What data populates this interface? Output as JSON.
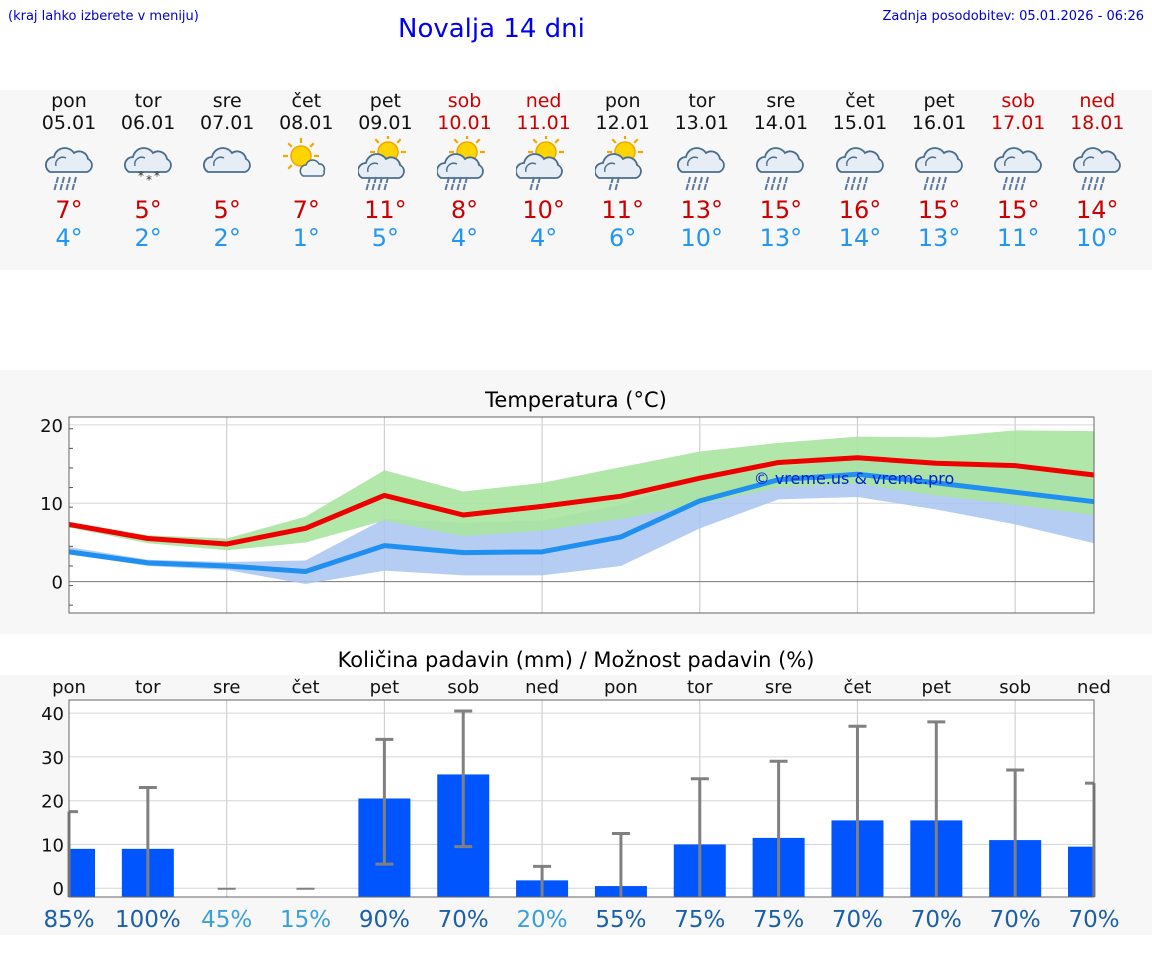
{
  "header": {
    "hint": "(kraj lahko izberete v meniju)",
    "title": "Novalja 14 dni",
    "updated": "Zadnja posodobitev: 05.01.2026 - 06:26"
  },
  "days": [
    {
      "name": "pon",
      "date": "05.01",
      "weekend": false,
      "icon": "rain-cloud-icon",
      "tmax": "7°",
      "tmin": "4°"
    },
    {
      "name": "tor",
      "date": "06.01",
      "weekend": false,
      "icon": "snow-cloud-icon",
      "tmax": "5°",
      "tmin": "2°"
    },
    {
      "name": "sre",
      "date": "07.01",
      "weekend": false,
      "icon": "cloud-icon",
      "tmax": "5°",
      "tmin": "2°"
    },
    {
      "name": "čet",
      "date": "08.01",
      "weekend": false,
      "icon": "sun-small-cloud-icon",
      "tmax": "7°",
      "tmin": "1°"
    },
    {
      "name": "pet",
      "date": "09.01",
      "weekend": false,
      "icon": "sun-rain-cloud-icon",
      "tmax": "11°",
      "tmin": "5°"
    },
    {
      "name": "sob",
      "date": "10.01",
      "weekend": true,
      "icon": "sun-rain-cloud-icon",
      "tmax": "8°",
      "tmin": "4°"
    },
    {
      "name": "ned",
      "date": "11.01",
      "weekend": true,
      "icon": "sun-cloud-light-rain-icon",
      "tmax": "10°",
      "tmin": "4°"
    },
    {
      "name": "pon",
      "date": "12.01",
      "weekend": false,
      "icon": "sun-cloud-light-rain-icon",
      "tmax": "11°",
      "tmin": "6°"
    },
    {
      "name": "tor",
      "date": "13.01",
      "weekend": false,
      "icon": "rain-cloud-icon",
      "tmax": "13°",
      "tmin": "10°"
    },
    {
      "name": "sre",
      "date": "14.01",
      "weekend": false,
      "icon": "rain-cloud-icon",
      "tmax": "15°",
      "tmin": "13°"
    },
    {
      "name": "čet",
      "date": "15.01",
      "weekend": false,
      "icon": "rain-cloud-icon",
      "tmax": "16°",
      "tmin": "14°"
    },
    {
      "name": "pet",
      "date": "16.01",
      "weekend": false,
      "icon": "rain-cloud-icon",
      "tmax": "15°",
      "tmin": "13°"
    },
    {
      "name": "sob",
      "date": "17.01",
      "weekend": true,
      "icon": "rain-cloud-icon",
      "tmax": "15°",
      "tmin": "11°"
    },
    {
      "name": "ned",
      "date": "18.01",
      "weekend": true,
      "icon": "rain-cloud-icon",
      "tmax": "14°",
      "tmin": "10°"
    }
  ],
  "colors": {
    "max_line": "#ee0000",
    "min_line": "#2090f0",
    "max_band": "#a8e4a0",
    "min_band": "#a8c4f0",
    "bar": "#0055ff",
    "whisker": "#808080",
    "watermark": "#0022cc"
  },
  "chart_data": [
    {
      "type": "line",
      "title": "Temperatura (°C)",
      "watermark": "© vreme.us & vreme.pro",
      "x_index": [
        0,
        1,
        2,
        3,
        4,
        5,
        6,
        7,
        8,
        9,
        10,
        11,
        12,
        13
      ],
      "ylim": [
        -4,
        21
      ],
      "yticks": [
        0,
        10,
        20
      ],
      "series": [
        {
          "name": "max",
          "values": [
            7.3,
            5.5,
            4.8,
            6.8,
            11.0,
            8.5,
            9.6,
            10.9,
            13.2,
            15.2,
            15.8,
            15.1,
            14.8,
            13.6
          ],
          "band_low": [
            6.9,
            4.9,
            4.0,
            5.0,
            7.8,
            5.8,
            6.5,
            8.0,
            9.9,
            12.0,
            12.5,
            11.0,
            9.8,
            8.5
          ],
          "band_high": [
            7.6,
            5.9,
            5.5,
            8.3,
            14.2,
            11.5,
            12.6,
            14.6,
            16.6,
            17.7,
            18.5,
            18.4,
            19.3,
            19.2
          ]
        },
        {
          "name": "min",
          "values": [
            3.8,
            2.4,
            2.0,
            1.3,
            4.6,
            3.7,
            3.8,
            5.7,
            10.3,
            13.0,
            13.7,
            12.6,
            11.4,
            10.2
          ],
          "band_low": [
            3.5,
            2.0,
            1.5,
            -0.3,
            1.4,
            0.8,
            0.8,
            2.0,
            6.8,
            10.5,
            10.8,
            9.2,
            7.3,
            4.9
          ],
          "band_high": [
            4.4,
            2.8,
            2.5,
            2.7,
            8.0,
            7.5,
            7.8,
            9.8,
            13.3,
            14.6,
            15.6,
            15.3,
            14.4,
            13.8
          ]
        }
      ]
    },
    {
      "type": "bar",
      "title": "Količina padavin (mm) / Možnost padavin (%)",
      "categories": [
        "pon",
        "tor",
        "sre",
        "čet",
        "pet",
        "sob",
        "ned",
        "pon",
        "tor",
        "sre",
        "čet",
        "pet",
        "sob",
        "ned"
      ],
      "values": [
        9,
        9,
        0,
        0,
        20.5,
        26,
        1.8,
        0.5,
        10,
        11.5,
        15.5,
        15.5,
        11,
        9.5
      ],
      "err_low": [
        0,
        0,
        0,
        0,
        5.5,
        9.5,
        0,
        0,
        0,
        0,
        0,
        0,
        0,
        0
      ],
      "err_high": [
        17.5,
        23,
        0,
        0,
        34,
        40.5,
        5,
        12.5,
        25,
        29,
        37,
        38,
        27,
        24
      ],
      "chance": [
        "85%",
        "100%",
        "45%",
        "15%",
        "90%",
        "70%",
        "20%",
        "55%",
        "75%",
        "75%",
        "70%",
        "70%",
        "70%",
        "70%"
      ],
      "ylim": [
        -2,
        43
      ],
      "yticks": [
        0,
        10,
        20,
        30,
        40
      ]
    }
  ]
}
